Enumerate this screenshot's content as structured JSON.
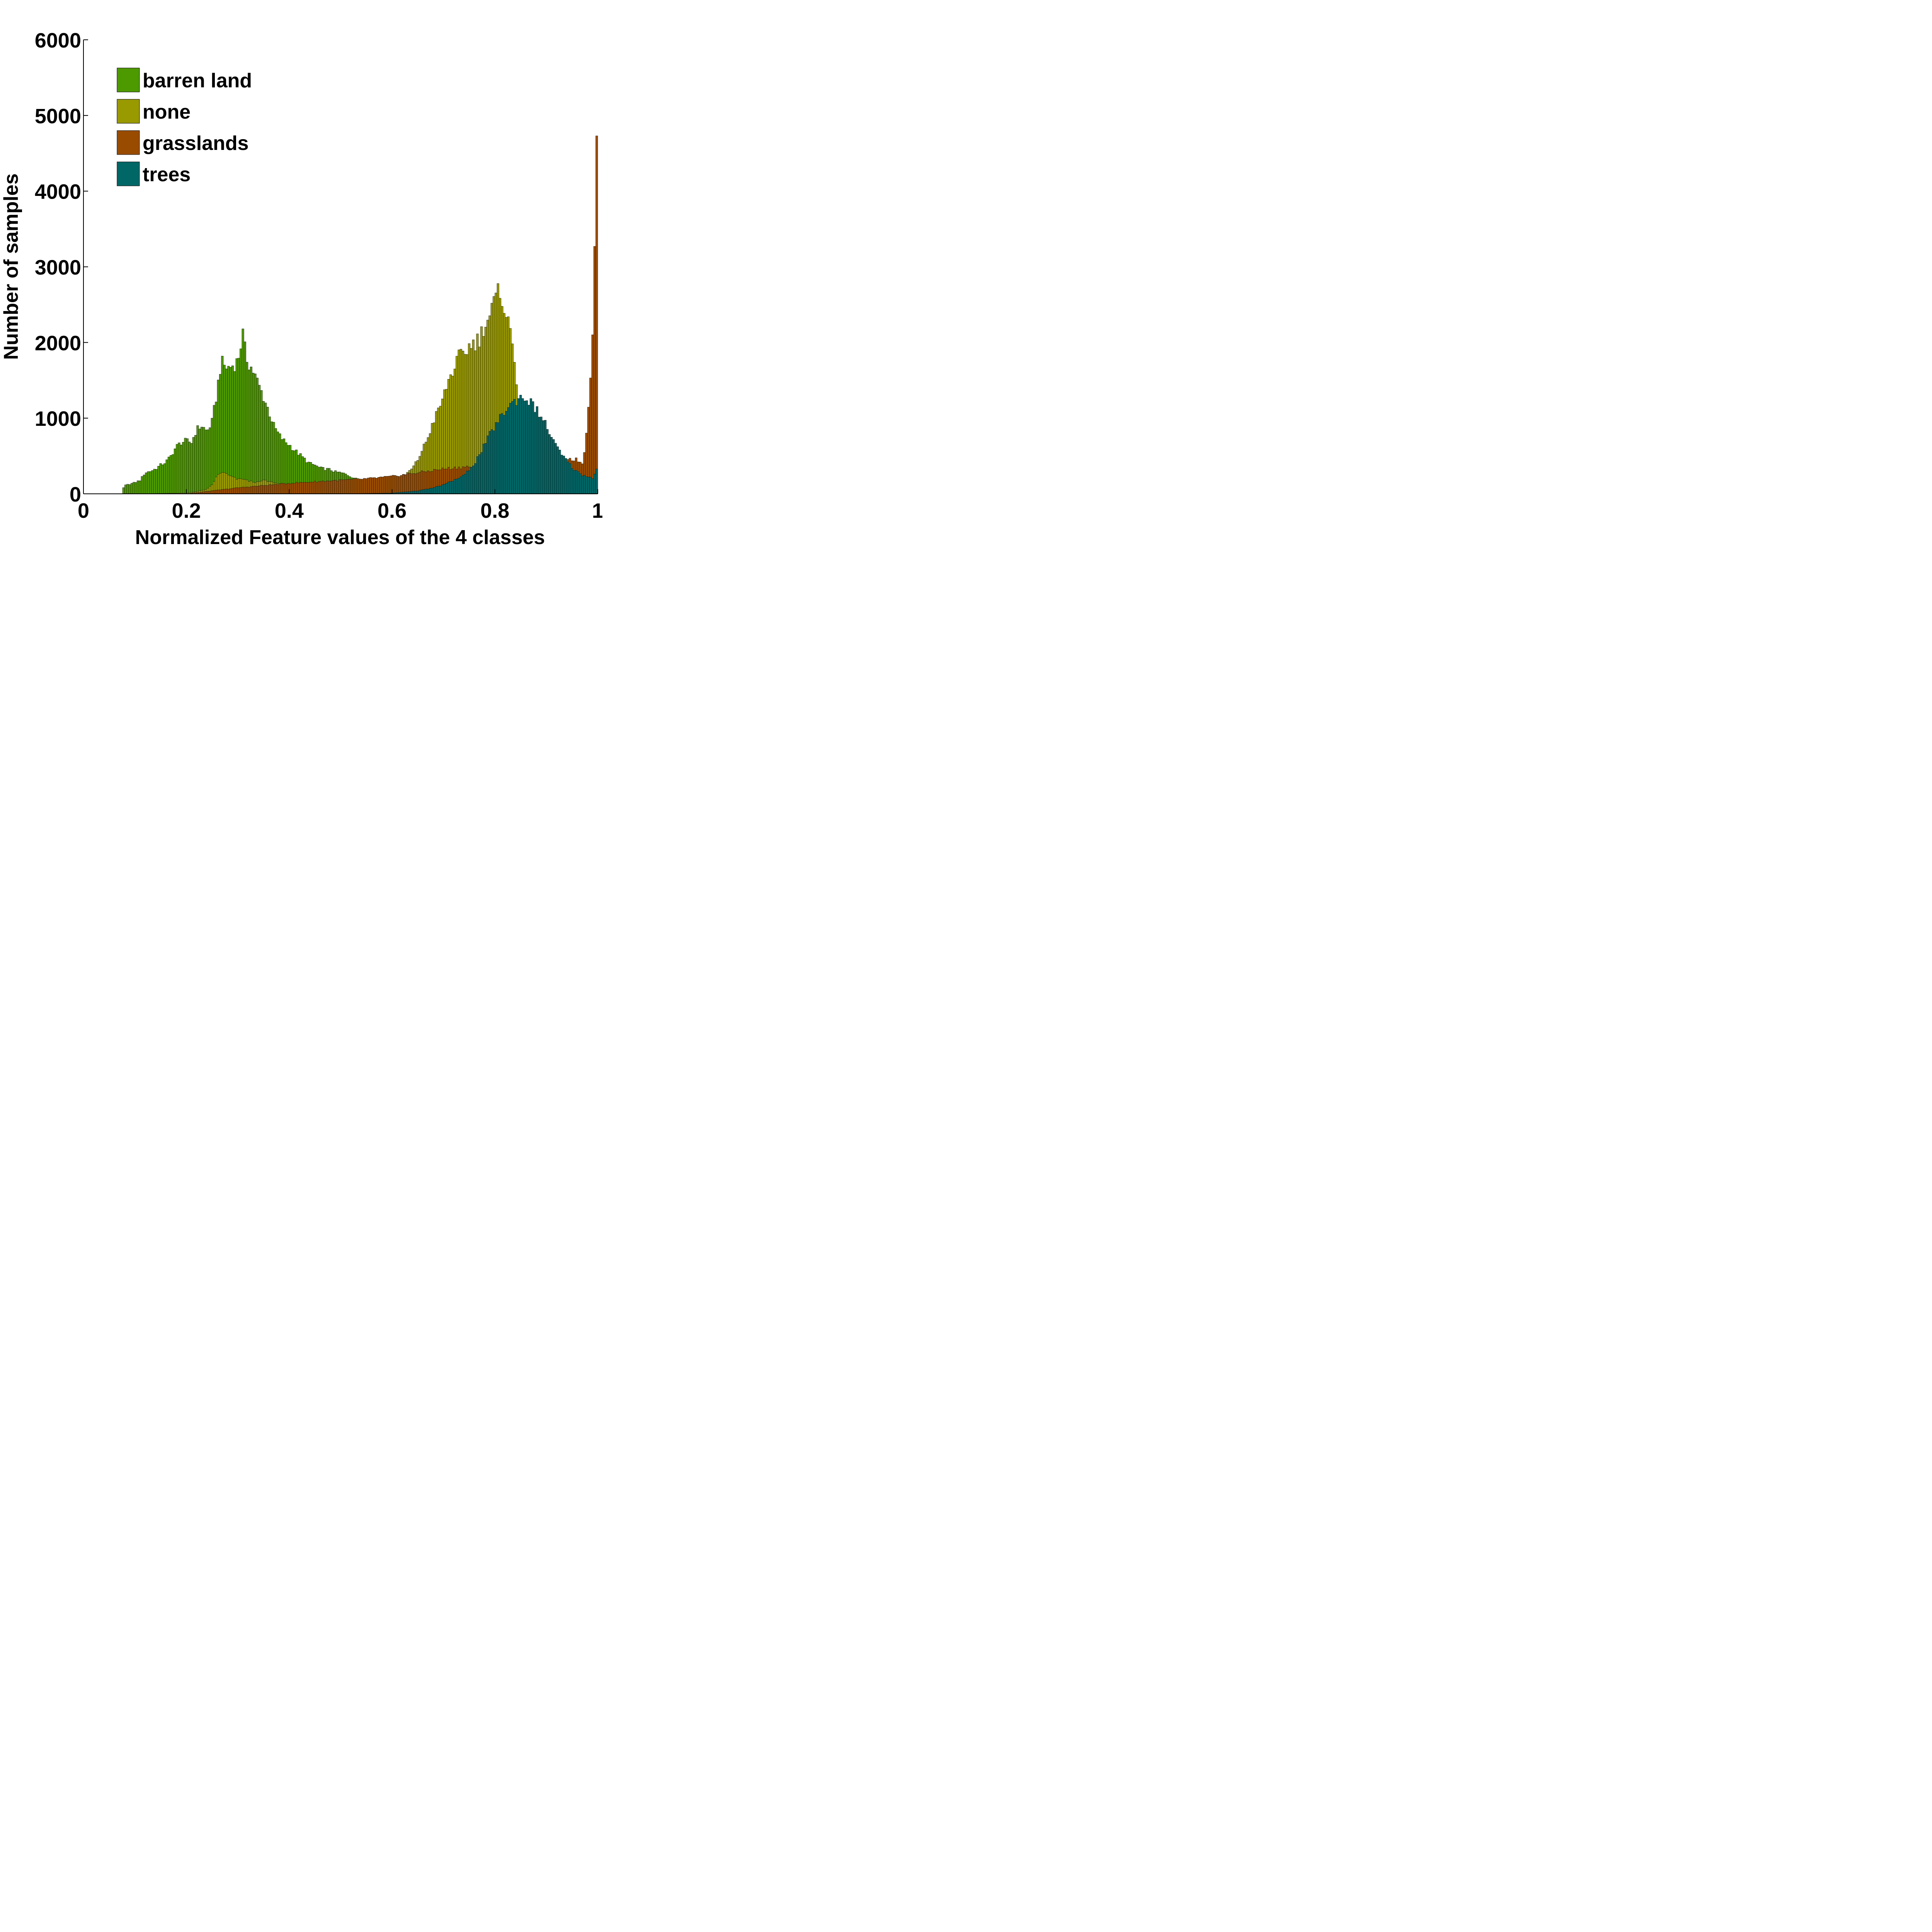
{
  "chart_data": {
    "type": "bar",
    "subtype": "overlapping-histogram",
    "title": "",
    "xlabel": "Normalized Feature values of the 4 classes",
    "ylabel": "Number of samples",
    "xlim": [
      0,
      1
    ],
    "ylim": [
      0,
      6000
    ],
    "xticks": [
      0,
      0.2,
      0.4,
      0.6,
      0.8,
      1
    ],
    "xtick_labels": [
      "0",
      "0.2",
      "0.4",
      "0.6",
      "0.8",
      "1"
    ],
    "yticks": [
      0,
      1000,
      2000,
      3000,
      4000,
      5000,
      6000
    ],
    "ytick_labels": [
      "0",
      "1000",
      "2000",
      "3000",
      "4000",
      "5000",
      "6000"
    ],
    "grid": false,
    "legend_position": "top-left",
    "bin_width": 0.004,
    "series": [
      {
        "name": "barren land",
        "color": "#4d9900",
        "points": [
          [
            0.076,
            50
          ],
          [
            0.08,
            110
          ],
          [
            0.09,
            130
          ],
          [
            0.1,
            150
          ],
          [
            0.11,
            180
          ],
          [
            0.12,
            280
          ],
          [
            0.13,
            300
          ],
          [
            0.14,
            330
          ],
          [
            0.15,
            380
          ],
          [
            0.16,
            420
          ],
          [
            0.17,
            500
          ],
          [
            0.18,
            620
          ],
          [
            0.19,
            680
          ],
          [
            0.2,
            700
          ],
          [
            0.21,
            680
          ],
          [
            0.22,
            850
          ],
          [
            0.23,
            900
          ],
          [
            0.24,
            820
          ],
          [
            0.25,
            950
          ],
          [
            0.26,
            1350
          ],
          [
            0.265,
            1650
          ],
          [
            0.27,
            1720
          ],
          [
            0.28,
            1660
          ],
          [
            0.29,
            1700
          ],
          [
            0.3,
            1750
          ],
          [
            0.305,
            1950
          ],
          [
            0.31,
            2100
          ],
          [
            0.315,
            1850
          ],
          [
            0.32,
            1750
          ],
          [
            0.33,
            1620
          ],
          [
            0.34,
            1450
          ],
          [
            0.35,
            1280
          ],
          [
            0.36,
            1100
          ],
          [
            0.37,
            900
          ],
          [
            0.38,
            780
          ],
          [
            0.39,
            700
          ],
          [
            0.4,
            650
          ],
          [
            0.41,
            580
          ],
          [
            0.42,
            520
          ],
          [
            0.43,
            460
          ],
          [
            0.44,
            400
          ],
          [
            0.45,
            380
          ],
          [
            0.46,
            340
          ],
          [
            0.47,
            330
          ],
          [
            0.48,
            320
          ],
          [
            0.49,
            290
          ],
          [
            0.5,
            280
          ],
          [
            0.51,
            260
          ],
          [
            0.52,
            230
          ],
          [
            0.53,
            200
          ],
          [
            0.54,
            160
          ],
          [
            0.55,
            120
          ],
          [
            0.6,
            40
          ],
          [
            0.7,
            10
          ],
          [
            0.8,
            0
          ]
        ]
      },
      {
        "name": "none",
        "color": "#999900",
        "points": [
          [
            0.1,
            0
          ],
          [
            0.2,
            10
          ],
          [
            0.22,
            30
          ],
          [
            0.24,
            60
          ],
          [
            0.25,
            120
          ],
          [
            0.26,
            240
          ],
          [
            0.27,
            290
          ],
          [
            0.28,
            250
          ],
          [
            0.29,
            220
          ],
          [
            0.3,
            190
          ],
          [
            0.31,
            200
          ],
          [
            0.32,
            170
          ],
          [
            0.33,
            160
          ],
          [
            0.34,
            150
          ],
          [
            0.35,
            180
          ],
          [
            0.36,
            160
          ],
          [
            0.37,
            150
          ],
          [
            0.38,
            130
          ],
          [
            0.4,
            120
          ],
          [
            0.45,
            100
          ],
          [
            0.5,
            110
          ],
          [
            0.55,
            110
          ],
          [
            0.6,
            150
          ],
          [
            0.62,
            220
          ],
          [
            0.64,
            340
          ],
          [
            0.65,
            450
          ],
          [
            0.66,
            600
          ],
          [
            0.67,
            750
          ],
          [
            0.68,
            950
          ],
          [
            0.69,
            1100
          ],
          [
            0.7,
            1280
          ],
          [
            0.71,
            1500
          ],
          [
            0.72,
            1650
          ],
          [
            0.73,
            1800
          ],
          [
            0.74,
            1850
          ],
          [
            0.75,
            1950
          ],
          [
            0.76,
            2000
          ],
          [
            0.77,
            2050
          ],
          [
            0.78,
            2250
          ],
          [
            0.79,
            2350
          ],
          [
            0.8,
            2550
          ],
          [
            0.81,
            2680
          ],
          [
            0.815,
            2600
          ],
          [
            0.82,
            2400
          ],
          [
            0.83,
            2150
          ],
          [
            0.84,
            1700
          ],
          [
            0.85,
            800
          ],
          [
            0.86,
            300
          ],
          [
            0.88,
            50
          ],
          [
            0.9,
            0
          ]
        ]
      },
      {
        "name": "grasslands",
        "color": "#994c00",
        "points": [
          [
            0.2,
            0
          ],
          [
            0.25,
            40
          ],
          [
            0.3,
            80
          ],
          [
            0.35,
            110
          ],
          [
            0.4,
            140
          ],
          [
            0.45,
            160
          ],
          [
            0.5,
            180
          ],
          [
            0.55,
            200
          ],
          [
            0.6,
            230
          ],
          [
            0.65,
            280
          ],
          [
            0.7,
            330
          ],
          [
            0.75,
            360
          ],
          [
            0.8,
            330
          ],
          [
            0.85,
            320
          ],
          [
            0.88,
            380
          ],
          [
            0.9,
            420
          ],
          [
            0.92,
            450
          ],
          [
            0.94,
            470
          ],
          [
            0.96,
            450
          ],
          [
            0.97,
            400
          ],
          [
            0.975,
            600
          ],
          [
            0.98,
            1000
          ],
          [
            0.985,
            1500
          ],
          [
            0.99,
            2050
          ],
          [
            0.993,
            2900
          ],
          [
            0.996,
            4250
          ],
          [
            0.999,
            5350
          ]
        ]
      },
      {
        "name": "trees",
        "color": "#006666",
        "points": [
          [
            0.5,
            0
          ],
          [
            0.6,
            10
          ],
          [
            0.65,
            40
          ],
          [
            0.68,
            80
          ],
          [
            0.7,
            120
          ],
          [
            0.72,
            180
          ],
          [
            0.74,
            240
          ],
          [
            0.75,
            320
          ],
          [
            0.76,
            400
          ],
          [
            0.77,
            520
          ],
          [
            0.78,
            650
          ],
          [
            0.79,
            780
          ],
          [
            0.8,
            900
          ],
          [
            0.81,
            1000
          ],
          [
            0.82,
            1100
          ],
          [
            0.83,
            1180
          ],
          [
            0.84,
            1230
          ],
          [
            0.85,
            1280
          ],
          [
            0.86,
            1270
          ],
          [
            0.87,
            1200
          ],
          [
            0.88,
            1120
          ],
          [
            0.89,
            1020
          ],
          [
            0.9,
            900
          ],
          [
            0.91,
            750
          ],
          [
            0.92,
            620
          ],
          [
            0.93,
            520
          ],
          [
            0.94,
            430
          ],
          [
            0.95,
            350
          ],
          [
            0.96,
            290
          ],
          [
            0.97,
            250
          ],
          [
            0.98,
            230
          ],
          [
            0.99,
            210
          ],
          [
            0.995,
            280
          ],
          [
            0.999,
            360
          ]
        ]
      }
    ]
  }
}
